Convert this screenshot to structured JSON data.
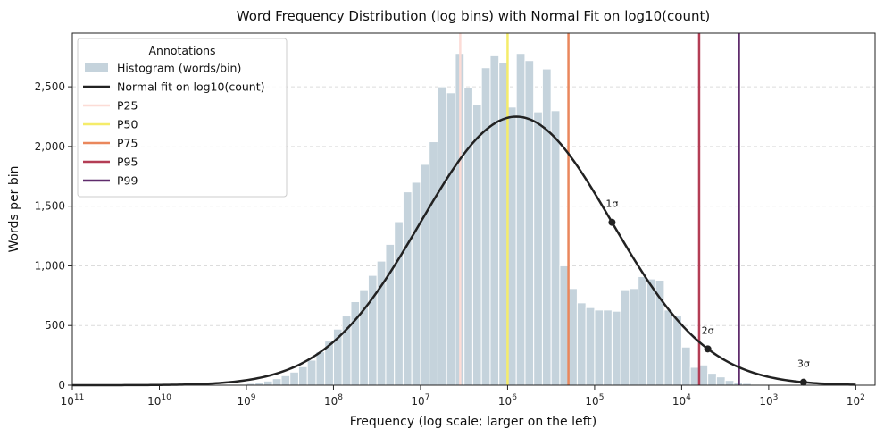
{
  "chart_data": {
    "type": "bar",
    "title": "Word Frequency Distribution (log bins) with Normal Fit on log10(count)",
    "xlabel": "Frequency (log scale; larger on the left)",
    "ylabel": "Words per bin",
    "x_scale": "log10, reversed",
    "xlim": [
      100000000000,
      60
    ],
    "ylim": [
      0,
      2950
    ],
    "grid": "y only, dashed",
    "x_ticks": [
      {
        "value": 100000000000,
        "base": "10",
        "exp": "11"
      },
      {
        "value": 10000000000,
        "base": "10",
        "exp": "10"
      },
      {
        "value": 1000000000,
        "base": "10",
        "exp": "9"
      },
      {
        "value": 100000000,
        "base": "10",
        "exp": "8"
      },
      {
        "value": 10000000,
        "base": "10",
        "exp": "7"
      },
      {
        "value": 1000000,
        "base": "10",
        "exp": "6"
      },
      {
        "value": 100000,
        "base": "10",
        "exp": "5"
      },
      {
        "value": 10000,
        "base": "10",
        "exp": "4"
      },
      {
        "value": 1000,
        "base": "10",
        "exp": "3"
      },
      {
        "value": 100,
        "base": "10",
        "exp": "2"
      }
    ],
    "y_ticks": [
      {
        "value": 0,
        "label": "0"
      },
      {
        "value": 500,
        "label": "500"
      },
      {
        "value": 1000,
        "label": "1,000"
      },
      {
        "value": 1500,
        "label": "1,500"
      },
      {
        "value": 2000,
        "label": "2,000"
      },
      {
        "value": 2500,
        "label": "2,500"
      }
    ],
    "histogram": {
      "name": "Histogram (words/bin)",
      "color": "#c5d3dc",
      "bin_width_log10": 0.1,
      "bin_log10_starts": [
        9.2,
        9.1,
        9.0,
        8.9,
        8.8,
        8.7,
        8.6,
        8.5,
        8.4,
        8.3,
        8.2,
        8.1,
        8.0,
        7.9,
        7.8,
        7.7,
        7.6,
        7.5,
        7.4,
        7.3,
        7.2,
        7.1,
        7.0,
        6.9,
        6.8,
        6.7,
        6.6,
        6.5,
        6.4,
        6.3,
        6.2,
        6.1,
        6.0,
        5.9,
        5.8,
        5.7,
        5.6,
        5.5,
        5.4,
        5.3,
        5.2,
        5.1,
        5.0,
        4.9,
        4.8,
        4.7,
        4.6,
        4.5,
        4.4,
        4.3,
        4.2,
        4.1,
        4.0,
        3.9,
        3.8,
        3.7,
        3.6,
        3.5,
        3.4,
        3.3,
        3.2,
        3.1,
        3.0,
        2.9,
        2.8,
        2.7,
        2.6
      ],
      "values": [
        3,
        8,
        15,
        25,
        35,
        55,
        80,
        110,
        155,
        210,
        280,
        370,
        470,
        580,
        700,
        800,
        920,
        1040,
        1180,
        1370,
        1620,
        1700,
        1850,
        2040,
        2500,
        2450,
        2780,
        2490,
        2350,
        2660,
        2760,
        2700,
        2330,
        2780,
        2720,
        2290,
        2650,
        2300,
        1000,
        810,
        690,
        650,
        630,
        630,
        620,
        800,
        810,
        910,
        890,
        880,
        630,
        580,
        320,
        150,
        170,
        100,
        70,
        40,
        25,
        15,
        8,
        4,
        3,
        2,
        1,
        0,
        0
      ]
    },
    "normal_fit": {
      "name": "Normal fit on log10(count)",
      "color": "#222222",
      "mu_log10": 5.9,
      "sigma_log10": 1.1,
      "peak": 2250,
      "x_range_log10": [
        11,
        2
      ]
    },
    "sigma_markers": [
      {
        "label": "1σ",
        "log10": 4.8
      },
      {
        "label": "2σ",
        "log10": 3.7
      },
      {
        "label": "3σ",
        "log10": 2.6
      }
    ],
    "percentiles": [
      {
        "name": "P25",
        "value": 3500000,
        "color": "#fcdcd6"
      },
      {
        "name": "P50",
        "value": 1000000,
        "color": "#f5ec6a"
      },
      {
        "name": "P75",
        "value": 200000,
        "color": "#ea875c"
      },
      {
        "name": "P95",
        "value": 6300,
        "color": "#b43d55"
      },
      {
        "name": "P99",
        "value": 2200,
        "color": "#5f2b6c"
      }
    ],
    "legend": {
      "title": "Annotations",
      "placement": "top-left"
    }
  }
}
